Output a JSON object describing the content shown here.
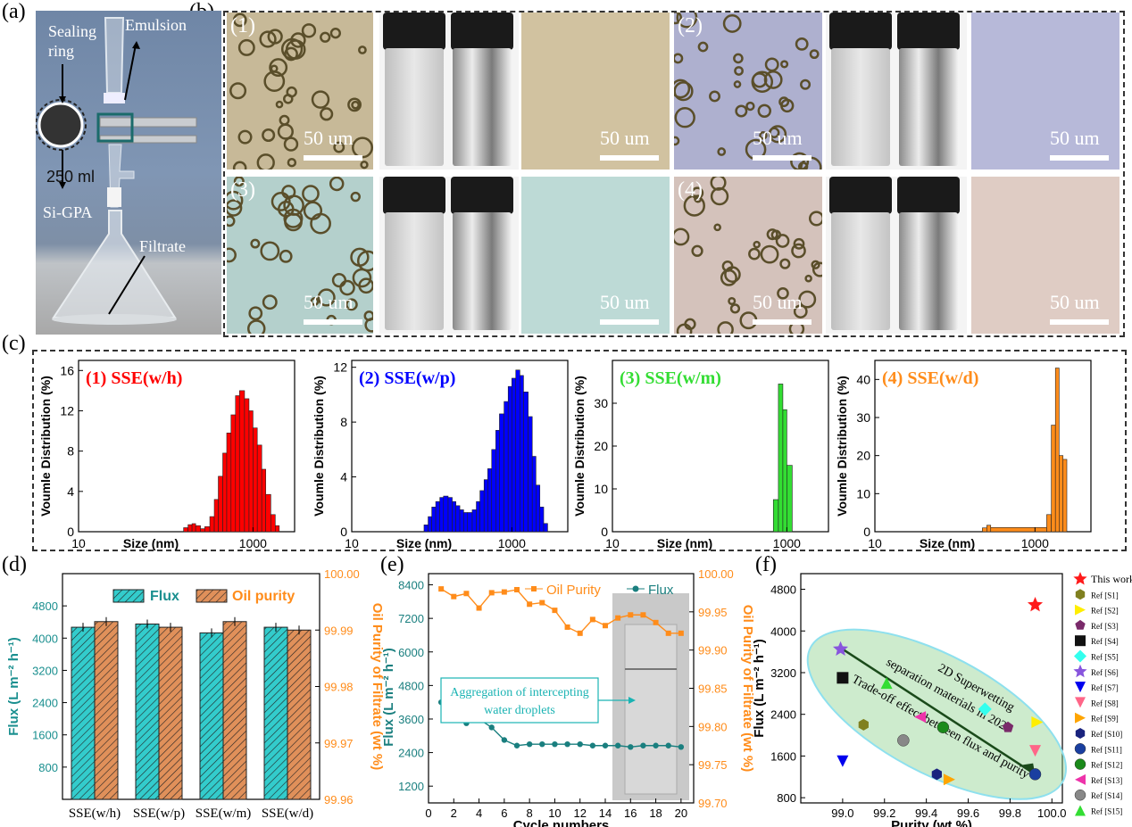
{
  "panel_labels": {
    "a": "(a)",
    "b": "(b)",
    "c": "(c)",
    "d": "(d)",
    "e": "(e)",
    "f": "(f)"
  },
  "panel_a": {
    "sealing_ring": "Sealing\nring",
    "emulsion": "Emulsion",
    "si_gpa": "Si-GPA",
    "filtrate": "Filtrate",
    "flask_mark": "250 ml"
  },
  "panel_b": {
    "tiles": [
      "(1)",
      "(2)",
      "(3)",
      "(4)"
    ],
    "scale_label": "50 um",
    "colors": {
      "t1": "#c7b998",
      "t2": "#aeb0cf",
      "t3": "#b4d0cc",
      "t4": "#d4c2bb"
    }
  },
  "panel_c": {
    "ylabel": "Voumle Distribution (%)",
    "xlabel": "Size (nm)",
    "chart_data": [
      {
        "type": "bar",
        "title": "(1) SSE(w/h)",
        "color": "#ff0000",
        "xscale": "log",
        "xlim": [
          10,
          3000
        ],
        "ylim": [
          0,
          17
        ],
        "yticks": [
          0,
          4,
          8,
          12,
          16
        ],
        "xticks": [
          {
            "v": 10,
            "l": "10"
          },
          {
            "v": 1000,
            "l": "1000"
          }
        ],
        "x": [
          160,
          180,
          200,
          220,
          250,
          280,
          320,
          360,
          400,
          450,
          500,
          560,
          630,
          700,
          800,
          900,
          1000,
          1120,
          1260,
          1400,
          1600,
          1800,
          2000
        ],
        "values": [
          0.4,
          0.7,
          0.8,
          0.6,
          0.3,
          0.5,
          1.5,
          3.2,
          5.5,
          7.8,
          9.8,
          11.6,
          13.5,
          14.0,
          13.2,
          12.0,
          10.3,
          8.6,
          6.2,
          3.7,
          1.7,
          0.6,
          0
        ]
      },
      {
        "type": "bar",
        "title": "(2) SSE(w/p)",
        "color": "#0000ff",
        "xscale": "log",
        "xlim": [
          10,
          5000
        ],
        "ylim": [
          0,
          12.5
        ],
        "yticks": [
          0,
          4,
          8,
          12
        ],
        "xticks": [
          {
            "v": 10,
            "l": "10"
          },
          {
            "v": 1000,
            "l": "1000"
          }
        ],
        "x": [
          80,
          90,
          100,
          112,
          126,
          140,
          160,
          180,
          200,
          224,
          250,
          280,
          320,
          360,
          400,
          450,
          500,
          560,
          630,
          700,
          800,
          900,
          1000,
          1120,
          1260,
          1400,
          1600,
          1800,
          2000,
          2240,
          2500,
          2800
        ],
        "values": [
          0.5,
          1.1,
          1.8,
          2.2,
          2.5,
          2.6,
          2.5,
          2.2,
          1.9,
          1.6,
          1.4,
          1.4,
          1.6,
          2.2,
          3.0,
          3.8,
          4.6,
          6.0,
          7.4,
          8.6,
          9.5,
          10.6,
          11.2,
          11.8,
          11.4,
          10.2,
          8.4,
          5.5,
          3.4,
          1.8,
          0.6,
          0
        ]
      },
      {
        "type": "bar",
        "title": "(3) SSE(w/m)",
        "color": "#33dd33",
        "xscale": "log",
        "xlim": [
          10,
          3000
        ],
        "ylim": [
          0,
          40
        ],
        "yticks": [
          0,
          10,
          20,
          30
        ],
        "xticks": [
          {
            "v": 10,
            "l": "10"
          },
          {
            "v": 1000,
            "l": "1000"
          }
        ],
        "x": [
          630,
          700,
          800,
          900,
          1000
        ],
        "values": [
          0,
          7.5,
          34.5,
          28.5,
          15.5
        ]
      },
      {
        "type": "bar",
        "title": "(4) SSE(w/d)",
        "color": "#ff8c1a",
        "xscale": "log",
        "xlim": [
          10,
          5000
        ],
        "ylim": [
          0,
          45
        ],
        "yticks": [
          0,
          10,
          20,
          30,
          40
        ],
        "xticks": [
          {
            "v": 10,
            "l": "10"
          },
          {
            "v": 1000,
            "l": "1000"
          }
        ],
        "x": [
          220,
          250,
          280,
          1400,
          1600,
          1800,
          2000,
          2240,
          2500
        ],
        "values": [
          1.0,
          1.7,
          1.1,
          4.5,
          28.0,
          43.0,
          20.0,
          19.0,
          0
        ]
      }
    ]
  },
  "panel_d": {
    "chart_data": {
      "type": "bar",
      "categories": [
        "SSE(w/h)",
        "SSE(w/p)",
        "SSE(w/m)",
        "SSE(w/d)"
      ],
      "series": [
        {
          "name": "Flux",
          "axis": "left",
          "values": [
            4270,
            4350,
            4130,
            4270
          ],
          "color": "#33cccc"
        },
        {
          "name": "Oil purity",
          "axis": "right",
          "values": [
            99.9915,
            99.9905,
            99.9915,
            99.99
          ],
          "color": "#e0905a"
        }
      ],
      "ylabel_left": "Flux (L m⁻² h⁻¹)",
      "ylim_left": [
        0,
        5600
      ],
      "yticks_left": [
        800,
        1600,
        2400,
        3200,
        4000,
        4800
      ],
      "ylabel_right": "Oil Purity of Filtrate (wt %)",
      "ylim_right": [
        99.96,
        100.0
      ],
      "yticks_right": [
        "99.96",
        "99.97",
        "99.98",
        "99.99",
        "100.00"
      ]
    }
  },
  "panel_e": {
    "chart_data": {
      "type": "line",
      "x": [
        1,
        2,
        3,
        4,
        5,
        6,
        7,
        8,
        9,
        10,
        11,
        12,
        13,
        14,
        15,
        16,
        17,
        18,
        19,
        20
      ],
      "series": [
        {
          "name": "Oil Purity",
          "axis": "right",
          "values": [
            99.98,
            99.97,
            99.974,
            99.955,
            99.975,
            99.976,
            99.979,
            99.96,
            99.962,
            99.952,
            99.93,
            99.922,
            99.94,
            99.932,
            99.942,
            99.946,
            99.946,
            99.936,
            99.922,
            99.922
          ],
          "color": "#ff8c1a"
        },
        {
          "name": "Flux",
          "axis": "left",
          "values": [
            4200,
            3850,
            3450,
            3600,
            3300,
            2850,
            2650,
            2700,
            2700,
            2700,
            2700,
            2700,
            2650,
            2650,
            2650,
            2600,
            2650,
            2650,
            2650,
            2600
          ],
          "color": "#1a7f7f"
        }
      ],
      "xlabel": "Cycle numbers",
      "xlim": [
        0,
        21
      ],
      "xticks": [
        0,
        2,
        4,
        6,
        8,
        10,
        12,
        14,
        16,
        18,
        20
      ],
      "ylabel_left": "Flux (L m⁻² h⁻¹)",
      "ylim_left": [
        600,
        8800
      ],
      "yticks_left": [
        1200,
        2400,
        3600,
        4800,
        6000,
        7200,
        8400
      ],
      "ylabel_right": "Oil Purity of Filtrate (wt %)",
      "ylim_right": [
        99.7,
        100.0
      ],
      "yticks_right": [
        "99.70",
        "99.75",
        "99.80",
        "99.85",
        "99.90",
        "99.95",
        "100.00"
      ],
      "annotation": "Aggregation of intercepting\nwater droplets"
    }
  },
  "panel_f": {
    "chart_data": {
      "type": "scatter",
      "xlabel": "Purity (wt %)",
      "xlim": [
        98.8,
        100.05
      ],
      "xticks": [
        "99.0",
        "99.2",
        "99.4",
        "99.6",
        "99.8",
        "100.0"
      ],
      "ylabel": "Flux (L m⁻² h⁻¹)",
      "ylim": [
        700,
        5100
      ],
      "yticks": [
        800,
        1600,
        2400,
        3200,
        4000,
        4800
      ],
      "ellipse_text": [
        "2D Superwetting",
        "separation materials in 2023",
        "Trade-off effect between flux and purity"
      ],
      "points": [
        {
          "name": "This work",
          "x": 99.92,
          "y": 4500,
          "color": "#ff1a1a",
          "shape": "star"
        },
        {
          "name": "Ref [S1]",
          "x": 99.1,
          "y": 2200,
          "color": "#808020",
          "shape": "hexagon"
        },
        {
          "name": "Ref [S2]",
          "x": 99.93,
          "y": 2250,
          "color": "#ffee00",
          "shape": "tri-right"
        },
        {
          "name": "Ref [S3]",
          "x": 99.79,
          "y": 2150,
          "color": "#7a2a6a",
          "shape": "pentagon"
        },
        {
          "name": "Ref [S4]",
          "x": 99.0,
          "y": 3100,
          "color": "#111111",
          "shape": "square"
        },
        {
          "name": "Ref [S5]",
          "x": 99.68,
          "y": 2500,
          "color": "#33ffee",
          "shape": "diamond"
        },
        {
          "name": "Ref [S6]",
          "x": 98.99,
          "y": 3650,
          "color": "#8855dd",
          "shape": "star"
        },
        {
          "name": "Ref [S7]",
          "x": 99.0,
          "y": 1500,
          "color": "#0000ee",
          "shape": "tri-down"
        },
        {
          "name": "Ref [S8]",
          "x": 99.92,
          "y": 1700,
          "color": "#ff6688",
          "shape": "tri-down"
        },
        {
          "name": "Ref [S9]",
          "x": 99.51,
          "y": 1150,
          "color": "#ffa500",
          "shape": "tri-right"
        },
        {
          "name": "Ref [S10]",
          "x": 99.45,
          "y": 1250,
          "color": "#1a237e",
          "shape": "hexagon"
        },
        {
          "name": "Ref [S11]",
          "x": 99.92,
          "y": 1250,
          "color": "#1a3fa0",
          "shape": "circle"
        },
        {
          "name": "Ref [S12]",
          "x": 99.48,
          "y": 2150,
          "color": "#1a8a1a",
          "shape": "circle"
        },
        {
          "name": "Ref [S13]",
          "x": 99.37,
          "y": 2350,
          "color": "#ee33aa",
          "shape": "tri-left"
        },
        {
          "name": "Ref [S14]",
          "x": 99.29,
          "y": 1900,
          "color": "#888888",
          "shape": "circle"
        },
        {
          "name": "Ref [S15]",
          "x": 99.21,
          "y": 3000,
          "color": "#33dd33",
          "shape": "tri-up"
        }
      ]
    }
  }
}
